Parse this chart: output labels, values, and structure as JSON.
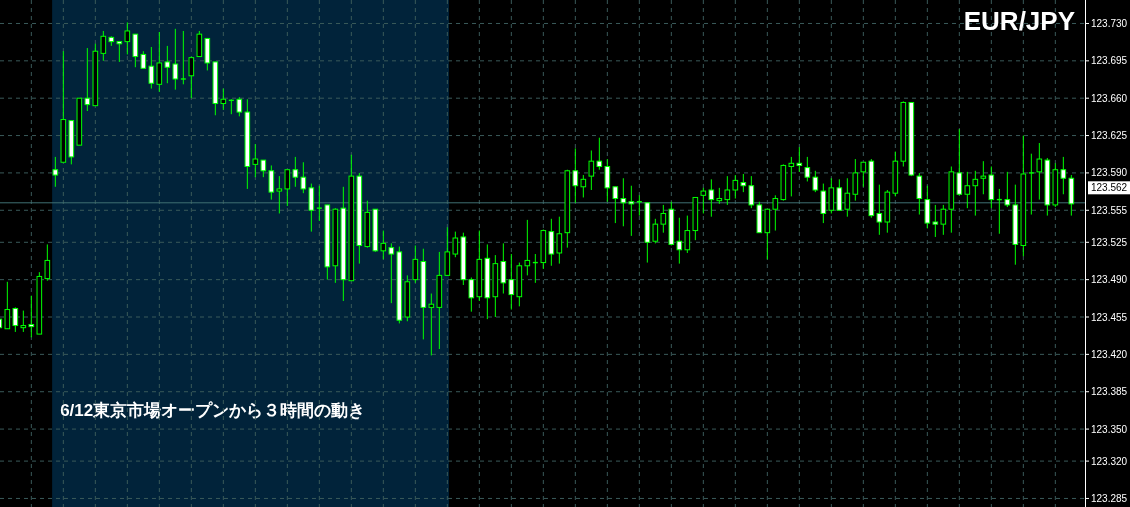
{
  "chart_data": {
    "type": "candlestick",
    "title": "EUR/JPY",
    "categories": [
      null,
      null,
      null,
      null,
      null,
      null,
      null,
      null,
      null,
      null,
      null,
      null,
      null,
      null,
      null,
      null,
      null,
      null,
      null,
      null,
      null,
      null,
      null,
      null,
      null,
      null,
      null,
      null,
      null,
      null,
      null,
      null,
      null,
      null,
      null,
      null,
      null,
      null,
      null,
      null,
      null,
      null,
      null,
      null,
      null,
      null,
      null,
      null,
      null,
      null,
      null,
      null,
      null,
      null,
      null,
      null,
      null,
      null,
      null,
      null,
      null,
      null,
      null,
      null,
      null,
      null,
      null,
      null,
      null,
      null,
      null,
      null,
      null,
      null,
      null,
      null,
      null,
      null,
      null,
      null,
      null,
      null,
      null,
      null,
      null,
      null,
      null,
      null,
      null,
      null,
      null,
      null,
      null,
      null,
      null,
      null,
      null,
      null,
      null,
      null,
      null,
      null,
      null,
      null,
      null,
      null,
      null,
      null,
      null,
      null,
      null,
      null,
      null,
      null,
      null,
      null,
      null,
      null,
      null,
      null,
      null,
      null,
      null,
      null,
      null,
      null,
      null,
      null,
      null,
      null,
      null,
      null,
      null,
      null,
      null
    ],
    "color": "#00ff00",
    "ohlc": [
      [
        123.453,
        123.456,
        123.442,
        123.445
      ],
      [
        123.444,
        123.488,
        123.444,
        123.462
      ],
      [
        123.463,
        123.464,
        123.441,
        123.447
      ],
      [
        123.445,
        123.461,
        123.441,
        123.447
      ],
      [
        123.448,
        123.475,
        123.436,
        123.446
      ],
      [
        123.439,
        123.497,
        123.439,
        123.493
      ],
      [
        123.491,
        123.523,
        123.489,
        123.508
      ],
      [
        123.593,
        123.605,
        123.577,
        123.588
      ],
      [
        123.6,
        123.704,
        123.6,
        123.64
      ],
      [
        123.639,
        123.639,
        123.598,
        123.605
      ],
      [
        123.616,
        123.66,
        123.616,
        123.66
      ],
      [
        123.66,
        123.707,
        123.648,
        123.654
      ],
      [
        123.653,
        123.711,
        123.653,
        123.704
      ],
      [
        123.702,
        123.723,
        123.695,
        123.718
      ],
      [
        123.717,
        123.718,
        123.709,
        123.713
      ],
      [
        123.713,
        123.713,
        123.694,
        123.711
      ],
      [
        123.713,
        123.731,
        123.701,
        123.723
      ],
      [
        123.72,
        123.72,
        123.689,
        123.699
      ],
      [
        123.701,
        123.704,
        123.688,
        123.688
      ],
      [
        123.69,
        123.708,
        123.669,
        123.674
      ],
      [
        123.673,
        123.722,
        123.666,
        123.693
      ],
      [
        123.694,
        123.709,
        123.674,
        123.689
      ],
      [
        123.692,
        123.725,
        123.668,
        123.678
      ],
      [
        123.678,
        123.723,
        123.673,
        123.678
      ],
      [
        123.681,
        123.699,
        123.66,
        123.698
      ],
      [
        123.699,
        123.723,
        123.699,
        123.72
      ],
      [
        123.716,
        123.716,
        123.686,
        123.693
      ],
      [
        123.694,
        123.694,
        123.644,
        123.655
      ],
      [
        123.655,
        123.669,
        123.649,
        123.659
      ],
      [
        123.658,
        123.659,
        123.645,
        123.658
      ],
      [
        123.659,
        123.661,
        123.643,
        123.647
      ],
      [
        123.647,
        123.659,
        123.575,
        123.596
      ],
      [
        123.598,
        123.617,
        123.586,
        123.603
      ],
      [
        123.602,
        123.602,
        123.586,
        123.592
      ],
      [
        123.592,
        123.597,
        123.565,
        123.572
      ],
      [
        123.573,
        123.587,
        123.552,
        123.575
      ],
      [
        123.575,
        123.593,
        123.559,
        123.593
      ],
      [
        123.593,
        123.605,
        123.577,
        123.586
      ],
      [
        123.586,
        123.6,
        123.571,
        123.575
      ],
      [
        123.576,
        123.58,
        123.535,
        123.555
      ],
      [
        123.557,
        123.578,
        123.545,
        123.557
      ],
      [
        123.56,
        123.56,
        123.49,
        123.502
      ],
      [
        123.503,
        123.557,
        123.487,
        123.556
      ],
      [
        123.557,
        123.577,
        123.47,
        123.49
      ],
      [
        123.489,
        123.607,
        123.489,
        123.587
      ],
      [
        123.587,
        123.59,
        123.505,
        123.522
      ],
      [
        123.521,
        123.564,
        123.52,
        123.553
      ],
      [
        123.556,
        123.556,
        123.516,
        123.517
      ],
      [
        123.517,
        123.536,
        123.509,
        123.524
      ],
      [
        123.52,
        123.524,
        123.468,
        123.514
      ],
      [
        123.516,
        123.521,
        123.449,
        123.452
      ],
      [
        123.455,
        123.494,
        123.451,
        123.488
      ],
      [
        123.49,
        123.522,
        123.487,
        123.509
      ],
      [
        123.507,
        123.519,
        123.434,
        123.464
      ],
      [
        123.464,
        123.477,
        123.419,
        123.467
      ],
      [
        123.464,
        123.516,
        123.425,
        123.494
      ],
      [
        123.494,
        123.539,
        123.494,
        123.516
      ],
      [
        123.514,
        123.535,
        123.511,
        123.529
      ],
      [
        123.53,
        123.534,
        123.485,
        123.49
      ],
      [
        123.49,
        123.492,
        123.46,
        123.473
      ],
      [
        123.474,
        123.536,
        123.47,
        123.509
      ],
      [
        123.51,
        123.523,
        123.453,
        123.473
      ],
      [
        123.474,
        123.513,
        123.455,
        123.505
      ],
      [
        123.507,
        123.524,
        123.477,
        123.487
      ],
      [
        123.49,
        123.514,
        123.462,
        123.476
      ],
      [
        123.474,
        123.506,
        123.465,
        123.503
      ],
      [
        123.503,
        123.546,
        123.494,
        123.508
      ],
      [
        123.506,
        123.514,
        123.487,
        123.506
      ],
      [
        123.506,
        123.537,
        123.5,
        123.536
      ],
      [
        123.535,
        123.547,
        123.503,
        123.514
      ],
      [
        123.515,
        123.549,
        123.505,
        123.533
      ],
      [
        123.534,
        123.593,
        123.52,
        123.592
      ],
      [
        123.592,
        123.613,
        123.562,
        123.578
      ],
      [
        123.577,
        123.588,
        123.567,
        123.584
      ],
      [
        123.587,
        123.611,
        123.574,
        123.601
      ],
      [
        123.601,
        123.623,
        123.593,
        123.596
      ],
      [
        123.596,
        123.603,
        123.563,
        123.576
      ],
      [
        123.577,
        123.577,
        123.543,
        123.566
      ],
      [
        123.566,
        123.585,
        123.54,
        123.562
      ],
      [
        123.563,
        123.578,
        123.531,
        123.561
      ],
      [
        123.563,
        123.569,
        123.55,
        123.563
      ],
      [
        123.562,
        123.562,
        123.506,
        123.525
      ],
      [
        123.526,
        123.547,
        123.524,
        123.542
      ],
      [
        123.542,
        123.56,
        123.534,
        123.552
      ],
      [
        123.556,
        123.563,
        123.522,
        123.523
      ],
      [
        123.526,
        123.548,
        123.505,
        123.518
      ],
      [
        123.518,
        123.55,
        123.515,
        123.536
      ],
      [
        123.536,
        123.567,
        123.527,
        123.567
      ],
      [
        123.569,
        123.576,
        123.552,
        123.573
      ],
      [
        123.574,
        123.584,
        123.549,
        123.565
      ],
      [
        123.564,
        123.576,
        123.561,
        123.566
      ],
      [
        123.565,
        123.587,
        123.56,
        123.574
      ],
      [
        123.574,
        123.588,
        123.566,
        123.583
      ],
      [
        123.581,
        123.589,
        123.572,
        123.578
      ],
      [
        123.578,
        123.587,
        123.557,
        123.56
      ],
      [
        123.56,
        123.563,
        123.534,
        123.534
      ],
      [
        123.534,
        123.556,
        123.509,
        123.556
      ],
      [
        123.556,
        123.569,
        123.536,
        123.566
      ],
      [
        123.565,
        123.598,
        123.564,
        123.597
      ],
      [
        123.596,
        123.605,
        123.568,
        123.599
      ],
      [
        123.599,
        123.614,
        123.591,
        123.597
      ],
      [
        123.595,
        123.605,
        123.582,
        123.586
      ],
      [
        123.586,
        123.592,
        123.572,
        123.574
      ],
      [
        123.573,
        123.58,
        123.543,
        123.552
      ],
      [
        123.555,
        123.585,
        123.552,
        123.576
      ],
      [
        123.576,
        123.584,
        123.555,
        123.555
      ],
      [
        123.556,
        123.585,
        123.549,
        123.571
      ],
      [
        123.57,
        123.603,
        123.564,
        123.59
      ],
      [
        123.591,
        123.6,
        123.577,
        123.6
      ],
      [
        123.601,
        123.603,
        123.548,
        123.55
      ],
      [
        123.552,
        123.579,
        123.532,
        123.544
      ],
      [
        123.544,
        123.574,
        123.534,
        123.572
      ],
      [
        123.571,
        123.61,
        123.568,
        123.601
      ],
      [
        123.601,
        123.657,
        123.596,
        123.656
      ],
      [
        123.656,
        123.656,
        123.587,
        123.588
      ],
      [
        123.587,
        123.59,
        123.551,
        123.566
      ],
      [
        123.565,
        123.578,
        123.538,
        123.543
      ],
      [
        123.544,
        123.56,
        123.53,
        123.542
      ],
      [
        123.542,
        123.56,
        123.532,
        123.556
      ],
      [
        123.556,
        123.596,
        123.534,
        123.591
      ],
      [
        123.59,
        123.631,
        123.569,
        123.57
      ],
      [
        123.57,
        123.591,
        123.557,
        123.578
      ],
      [
        123.578,
        123.592,
        123.55,
        123.584
      ],
      [
        123.585,
        123.601,
        123.57,
        123.587
      ],
      [
        123.588,
        123.596,
        123.557,
        123.565
      ],
      [
        123.565,
        123.575,
        123.533,
        123.565
      ],
      [
        123.565,
        123.591,
        123.558,
        123.56
      ],
      [
        123.56,
        123.579,
        123.504,
        123.523
      ],
      [
        123.522,
        123.625,
        123.512,
        123.589
      ],
      [
        123.59,
        123.608,
        123.551,
        123.59
      ],
      [
        123.591,
        123.618,
        123.565,
        123.603
      ],
      [
        123.602,
        123.604,
        123.55,
        123.56
      ],
      [
        123.56,
        123.599,
        123.558,
        123.593
      ],
      [
        123.593,
        123.605,
        123.57,
        123.585
      ],
      [
        123.585,
        123.588,
        123.55,
        123.561
      ]
    ],
    "ylim": [
      123.277,
      123.752
    ],
    "yticks": [
      {
        "value": 123.73,
        "label": "123.730"
      },
      {
        "value": 123.695,
        "label": "123.695"
      },
      {
        "value": 123.66,
        "label": "123.660"
      },
      {
        "value": 123.625,
        "label": "123.625"
      },
      {
        "value": 123.59,
        "label": "123.590"
      },
      {
        "value": 123.555,
        "label": "123.555"
      },
      {
        "value": 123.525,
        "label": "123.525"
      },
      {
        "value": 123.49,
        "label": "123.490"
      },
      {
        "value": 123.455,
        "label": "123.455"
      },
      {
        "value": 123.42,
        "label": "123.420"
      },
      {
        "value": 123.385,
        "label": "123.385"
      },
      {
        "value": 123.35,
        "label": "123.350"
      },
      {
        "value": 123.32,
        "label": "123.320"
      },
      {
        "value": 123.285,
        "label": "123.285"
      }
    ],
    "ref_lines": [
      {
        "axis": "y",
        "value": 123.562,
        "label": "123.562",
        "color": "#3f6f73"
      }
    ],
    "annotations": [
      "6/12東京市場オープンから３時間の動き"
    ],
    "grid": true,
    "tick_labels": "y"
  }
}
